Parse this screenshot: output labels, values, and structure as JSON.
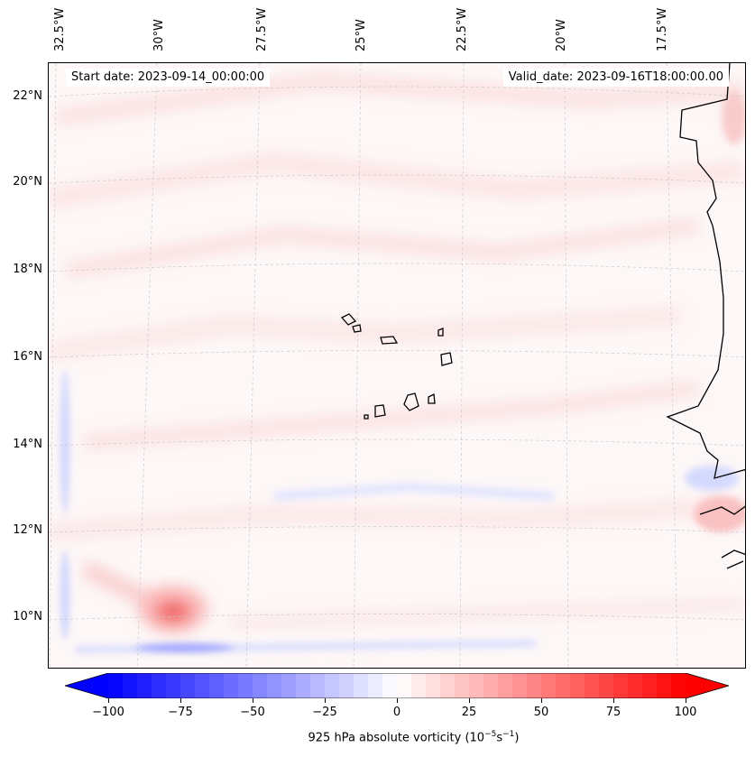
{
  "map": {
    "start_date": "Start date: 2023-09-14_00:00:00",
    "valid_date": "Valid_date: 2023-09-16T18:00:00.00",
    "lon_labels": [
      "32.5°W",
      "30°W",
      "27.5°W",
      "25°W",
      "22.5°W",
      "20°W",
      "17.5°W"
    ],
    "lat_labels": [
      "22°N",
      "20°N",
      "18°N",
      "16°N",
      "14°N",
      "12°N",
      "10°N"
    ],
    "variable": "925 hPa absolute vorticity (10",
    "units_exp1": "−5",
    "units_mid": "s",
    "units_exp2": "−1",
    "units_close": ")"
  },
  "colorbar": {
    "min": -100,
    "max": 100,
    "ticks": [
      "−100",
      "−75",
      "−50",
      "−25",
      "0",
      "25",
      "50",
      "75",
      "100"
    ],
    "tick_values": [
      -100,
      -75,
      -50,
      -25,
      0,
      25,
      50,
      75,
      100
    ],
    "negative_color": "#0000ff",
    "positive_color": "#ff0000",
    "neutral_color": "#ffffff"
  }
}
